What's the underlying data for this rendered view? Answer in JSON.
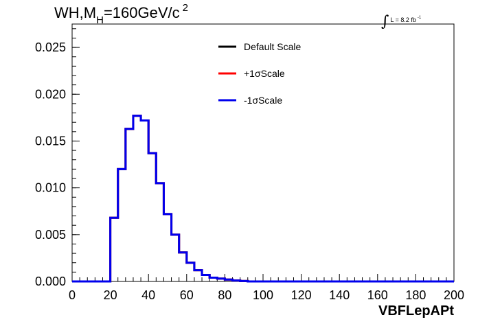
{
  "title": {
    "prefix": "WH,M",
    "subscript": "H",
    "value": "=160GeV/c",
    "superscript": "2"
  },
  "luminosity": {
    "integral": "∫",
    "text": "L = 8.2 fb",
    "superscript": "-1"
  },
  "chart_data": {
    "type": "line",
    "style": "step-histogram",
    "xlabel": "VBFLepAPt",
    "ylabel": "",
    "xlim": [
      0,
      200
    ],
    "ylim": [
      0,
      0.0275
    ],
    "x_ticks": [
      "0",
      "20",
      "40",
      "60",
      "80",
      "100",
      "120",
      "140",
      "160",
      "180",
      "200"
    ],
    "y_ticks": [
      "0.000",
      "0.005",
      "0.010",
      "0.015",
      "0.020",
      "0.025"
    ],
    "bin_edges": [
      0,
      4,
      8,
      12,
      16,
      20,
      24,
      28,
      32,
      36,
      40,
      44,
      48,
      52,
      56,
      60,
      64,
      68,
      72,
      76,
      80,
      84,
      88,
      92,
      96,
      100,
      104,
      108,
      112,
      116,
      120,
      124,
      128,
      132,
      136,
      140,
      144,
      148,
      152,
      156,
      160,
      164,
      168,
      172,
      176,
      180,
      184,
      188,
      192,
      196,
      200
    ],
    "series": [
      {
        "name": "Default Scale",
        "color": "#000000",
        "values": [
          0,
          0,
          0,
          0,
          0,
          0.0068,
          0.012,
          0.0163,
          0.0177,
          0.0172,
          0.0137,
          0.0105,
          0.0072,
          0.005,
          0.0031,
          0.002,
          0.0012,
          0.0007,
          0.0004,
          0.0003,
          0.0002,
          0.0001,
          5e-05,
          0,
          0,
          0,
          0,
          0,
          0,
          0,
          0,
          0,
          0,
          0,
          0,
          0,
          0,
          0,
          0,
          0,
          0,
          0,
          0,
          0,
          0,
          0,
          0,
          0,
          0,
          0
        ]
      },
      {
        "name": "+1σScale",
        "color": "#ff0000",
        "values": [
          0,
          0,
          0,
          0,
          0,
          0.0068,
          0.012,
          0.0163,
          0.0177,
          0.0172,
          0.0137,
          0.0105,
          0.0072,
          0.005,
          0.0031,
          0.002,
          0.0012,
          0.0007,
          0.0004,
          0.0003,
          0.0002,
          0.0001,
          5e-05,
          0,
          0,
          0,
          0,
          0,
          0,
          0,
          0,
          0,
          0,
          0,
          0,
          0,
          0,
          0,
          0,
          0,
          0,
          0,
          0,
          0,
          0,
          0,
          0,
          0,
          0,
          0
        ]
      },
      {
        "name": "-1σScale",
        "color": "#0000ee",
        "values": [
          0,
          0,
          0,
          0,
          0,
          0.0068,
          0.012,
          0.0163,
          0.0177,
          0.0172,
          0.0137,
          0.0105,
          0.0072,
          0.005,
          0.0031,
          0.002,
          0.0012,
          0.0007,
          0.0004,
          0.0003,
          0.0002,
          0.0001,
          5e-05,
          0,
          0,
          0,
          0,
          0,
          0,
          0,
          0,
          0,
          0,
          0,
          0,
          0,
          0,
          0,
          0,
          0,
          0,
          0,
          0,
          0,
          0,
          0,
          0,
          0,
          0,
          0
        ]
      }
    ],
    "legend": [
      {
        "label": "Default Scale",
        "color": "#000000"
      },
      {
        "label": "+1σScale",
        "color": "#ff0000"
      },
      {
        "label": "-1σScale",
        "color": "#0000ee"
      }
    ],
    "grid": false,
    "legend_position": "top-center"
  }
}
